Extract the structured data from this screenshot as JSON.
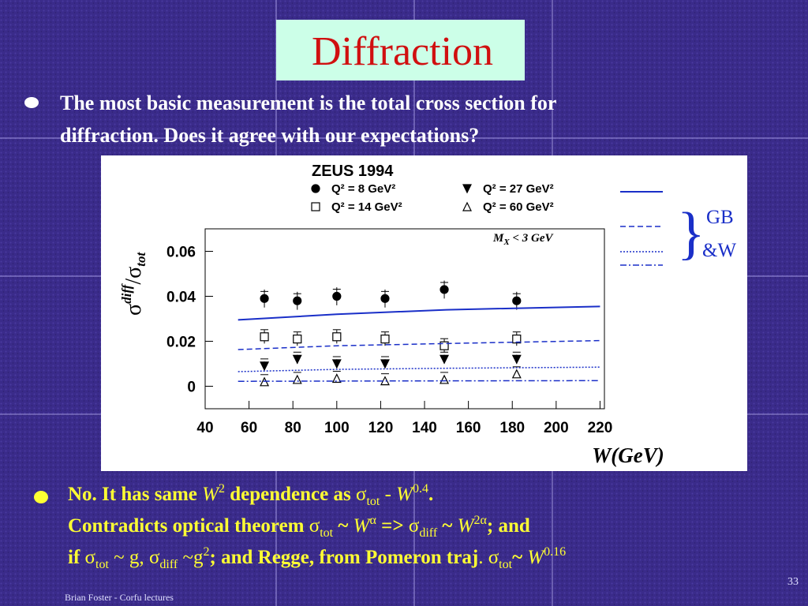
{
  "title": "Diffraction",
  "bullets": [
    {
      "lines": [
        "The most basic measurement is the total cross section for",
        "diffraction. Does it agree with our expectations?"
      ]
    },
    {
      "lines": [
        [
          "No. It has same ",
          "W",
          "2",
          " dependence as ",
          "σ",
          "tot",
          " - ",
          "W",
          "0.4",
          "."
        ],
        [
          "Contradicts optical theorem ",
          "σ",
          "tot",
          " ~ ",
          "W",
          "α",
          " => ",
          "σ",
          "diff",
          " ~ ",
          "W",
          "2α",
          "; and"
        ],
        [
          "if ",
          "σ",
          "tot",
          " ~ g, ",
          "σ",
          "diff",
          " ~g",
          "2",
          "; and Regge, from Pomeron traj",
          ". ",
          "σ",
          "tot",
          "~ ",
          "W",
          "0.16"
        ]
      ]
    }
  ],
  "footer": "Brian Foster - Corfu lectures",
  "page_number": "33",
  "chart_data": {
    "type": "scatter",
    "title": "ZEUS 1994",
    "annotation": [
      "M",
      "X",
      " < 3 GeV"
    ],
    "xlabel": "W(GeV)",
    "ylabel": [
      "σ",
      "diff",
      "/σ",
      "tot"
    ],
    "xlim": [
      40,
      222
    ],
    "xticks": [
      40,
      60,
      80,
      100,
      120,
      140,
      160,
      180,
      200,
      220
    ],
    "ylim": [
      -0.01,
      0.07
    ],
    "yticks": [
      0,
      0.02,
      0.04,
      0.06
    ],
    "x": [
      67,
      82,
      100,
      122,
      149,
      182
    ],
    "series": [
      {
        "name": "Q² = 8 GeV²",
        "marker": "circle-filled",
        "color": "#000000",
        "values": [
          0.039,
          0.038,
          0.04,
          0.039,
          0.043,
          0.038
        ],
        "errors": [
          0.004,
          0.004,
          0.004,
          0.004,
          0.004,
          0.004
        ]
      },
      {
        "name": "Q² = 14 GeV²",
        "marker": "square-open",
        "color": "#000000",
        "values": [
          0.022,
          0.021,
          0.022,
          0.021,
          0.018,
          0.021
        ],
        "errors": [
          0.003,
          0.003,
          0.003,
          0.003,
          0.003,
          0.003
        ]
      },
      {
        "name": "Q² = 27 GeV²",
        "marker": "triangle-down-filled",
        "color": "#000000",
        "values": [
          0.009,
          0.012,
          0.01,
          0.01,
          0.012,
          0.012
        ],
        "errors": [
          0.002,
          0.002,
          0.002,
          0.002,
          0.002,
          0.002
        ]
      },
      {
        "name": "Q² = 60 GeV²",
        "marker": "triangle-up-open",
        "color": "#000000",
        "values": [
          0.002,
          0.003,
          0.0035,
          0.0024,
          0.003,
          0.0055
        ],
        "errors": [
          0.0015,
          0.0015,
          0.0015,
          0.0015,
          0.0015,
          0.0015
        ]
      }
    ],
    "curve_label": [
      "GB",
      "&W"
    ],
    "curve_color": "#1a2fc8",
    "curves": [
      {
        "dash": "solid",
        "x": [
          55,
          100,
          150,
          220
        ],
        "values": [
          0.0295,
          0.032,
          0.034,
          0.0355
        ]
      },
      {
        "dash": "dashed",
        "x": [
          55,
          100,
          150,
          220
        ],
        "values": [
          0.0163,
          0.018,
          0.019,
          0.0203
        ]
      },
      {
        "dash": "dotted",
        "x": [
          55,
          100,
          150,
          220
        ],
        "values": [
          0.0065,
          0.0075,
          0.008,
          0.0085
        ]
      },
      {
        "dash": "dash-dot",
        "x": [
          55,
          100,
          150,
          220
        ],
        "values": [
          0.0022,
          0.0023,
          0.0024,
          0.0025
        ]
      }
    ]
  }
}
